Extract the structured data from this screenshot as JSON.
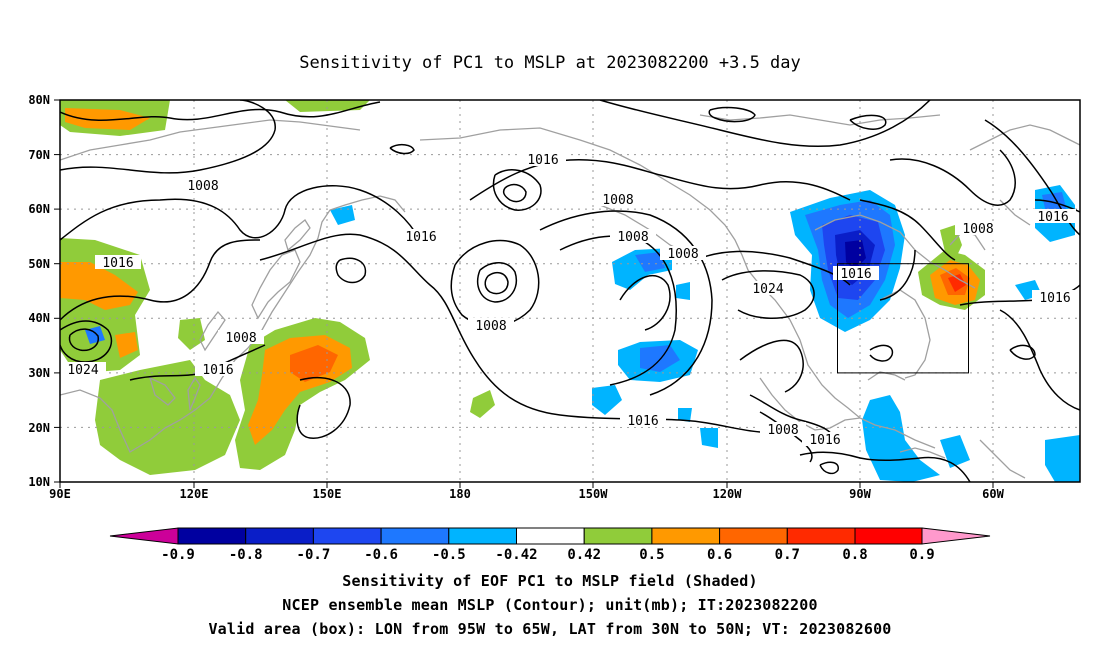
{
  "title": "Sensitivity of PC1 to MSLP at 2023082200 +3.5 day",
  "lat_labels": [
    "80N",
    "70N",
    "60N",
    "50N",
    "40N",
    "30N",
    "20N",
    "10N"
  ],
  "lon_labels": [
    "90E",
    "120E",
    "150E",
    "180",
    "150W",
    "120W",
    "90W",
    "60W"
  ],
  "colorbar": {
    "labels": [
      "-0.9",
      "-0.8",
      "-0.7",
      "-0.6",
      "-0.5",
      "-0.42",
      "0.42",
      "0.5",
      "0.6",
      "0.7",
      "0.8",
      "0.9"
    ],
    "colors": [
      "#cc0099",
      "#0000a0",
      "#0a1ec8",
      "#1e46f0",
      "#1e78ff",
      "#00b4ff",
      "#ffffff",
      "#90cc3a",
      "#ff9900",
      "#ff6600",
      "#ff2a00",
      "#ff0000",
      "#ff99cc"
    ]
  },
  "contour_labels": [
    {
      "text": "1008"
    },
    {
      "text": "1016"
    },
    {
      "text": "1016"
    },
    {
      "text": "1008"
    },
    {
      "text": "1016"
    },
    {
      "text": "1024"
    },
    {
      "text": "1016"
    },
    {
      "text": "1008"
    },
    {
      "text": "1008"
    },
    {
      "text": "1008"
    },
    {
      "text": "1008"
    },
    {
      "text": "1024"
    },
    {
      "text": "1016"
    },
    {
      "text": "1008"
    },
    {
      "text": "1016"
    },
    {
      "text": "1016"
    },
    {
      "text": "1016"
    },
    {
      "text": "1008"
    },
    {
      "text": "1016"
    }
  ],
  "valid_box": {
    "lon_min": "95W",
    "lon_max": "65W",
    "lat_min": "30N",
    "lat_max": "50N"
  },
  "captions": [
    "Sensitivity of EOF PC1 to MSLP field (Shaded)",
    "NCEP ensemble mean MSLP (Contour); unit(mb); IT:2023082200",
    "Valid area (box): LON from 95W to 65W, LAT from 30N to 50N; VT: 2023082600"
  ]
}
